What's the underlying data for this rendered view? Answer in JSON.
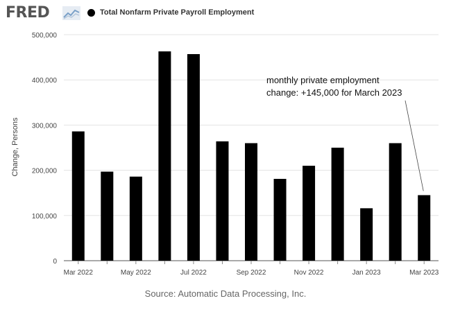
{
  "header": {
    "logo_text": "FRED",
    "logo_icon": "line-chart-icon",
    "legend_label": "Total Nonfarm Private Payroll Employment",
    "legend_color": "#000000"
  },
  "source": "Source: Automatic Data Processing, Inc.",
  "chart_data": {
    "type": "bar",
    "title": "",
    "ylabel": "Change, Persons",
    "xlabel": "",
    "ylim": [
      0,
      500000
    ],
    "yticks": [
      0,
      100000,
      200000,
      300000,
      400000,
      500000
    ],
    "ytick_labels": [
      "0",
      "100,000",
      "200,000",
      "300,000",
      "400,000",
      "500,000"
    ],
    "categories": [
      "Mar 2022",
      "Apr 2022",
      "May 2022",
      "Jun 2022",
      "Jul 2022",
      "Aug 2022",
      "Sep 2022",
      "Oct 2022",
      "Nov 2022",
      "Dec 2022",
      "Jan 2023",
      "Feb 2023",
      "Mar 2023"
    ],
    "xtick_labels": [
      "Mar 2022",
      "",
      "May 2022",
      "",
      "Jul 2022",
      "",
      "Sep 2022",
      "",
      "Nov 2022",
      "",
      "Jan 2023",
      "",
      "Mar 2023"
    ],
    "series": [
      {
        "name": "Total Nonfarm Private Payroll Employment",
        "color": "#000000",
        "values": [
          286000,
          197000,
          186000,
          463000,
          457000,
          264000,
          260000,
          181000,
          210000,
          250000,
          116000,
          260000,
          145000
        ]
      }
    ],
    "grid": true,
    "legend": "top-left",
    "annotation": {
      "lines": [
        "monthly private employment",
        "change: +145,000 for March 2023"
      ],
      "target_category": "Mar 2023"
    }
  }
}
